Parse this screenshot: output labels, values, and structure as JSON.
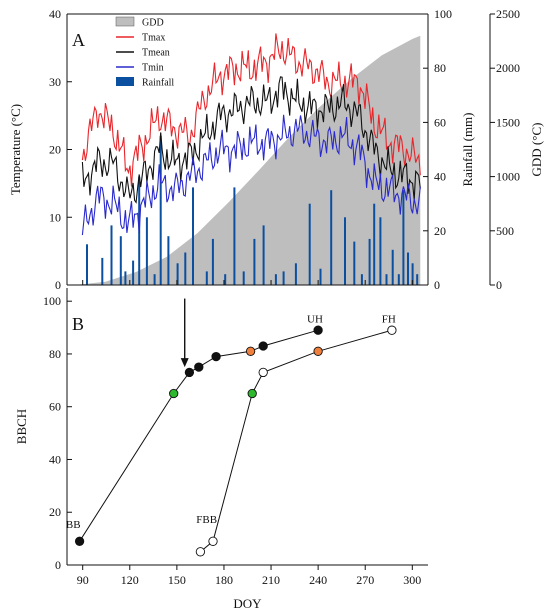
{
  "chart_data": [
    {
      "type": "line",
      "panel_label": "A",
      "ylabel_left": "Temperature (°C)",
      "ylabel_right_rain": "Rainfall (mm)",
      "ylabel_right_gdd": "GDD (°C)",
      "ylim_temp": [
        0,
        40
      ],
      "ylim_rain": [
        0,
        100
      ],
      "ylim_gdd": [
        0,
        2500
      ],
      "yticks_temp": [
        0,
        10,
        20,
        30,
        40
      ],
      "yticks_rain": [
        0,
        20,
        40,
        60,
        80,
        100
      ],
      "yticks_gdd": [
        0,
        500,
        1000,
        1500,
        2000,
        2500
      ],
      "xlim": [
        75,
        310
      ],
      "legend_position": "top-left",
      "legend": [
        {
          "name": "GDD",
          "kind": "area",
          "color": "#bebebe"
        },
        {
          "name": "Tmax",
          "kind": "line",
          "color": "#e8262b"
        },
        {
          "name": "Tmean",
          "kind": "line",
          "color": "#111111"
        },
        {
          "name": "Tmin",
          "kind": "line",
          "color": "#2a2acc"
        },
        {
          "name": "Rainfall",
          "kind": "bar",
          "color": "#0a4fa0"
        }
      ],
      "gdd_series": {
        "name": "GDD",
        "x": [
          80,
          100,
          120,
          140,
          160,
          180,
          200,
          220,
          240,
          260,
          280,
          300,
          305
        ],
        "y": [
          0,
          30,
          120,
          260,
          480,
          760,
          1060,
          1370,
          1650,
          1900,
          2120,
          2270,
          2300
        ]
      },
      "temperature_keypoints": {
        "tmax": {
          "x": [
            85,
            95,
            105,
            115,
            125,
            135,
            145,
            155,
            165,
            175,
            185,
            195,
            205,
            215,
            225,
            235,
            245,
            255,
            265,
            275,
            285,
            295,
            305
          ],
          "y": [
            19,
            26,
            23,
            17,
            21,
            25,
            23,
            22,
            28,
            31,
            32,
            32,
            33,
            35,
            33,
            32,
            30,
            30,
            30,
            24,
            21,
            20,
            18
          ]
        },
        "tmean": {
          "x": [
            85,
            95,
            105,
            115,
            125,
            135,
            145,
            155,
            165,
            175,
            185,
            195,
            205,
            215,
            225,
            235,
            245,
            255,
            265,
            275,
            285,
            295,
            305
          ],
          "y": [
            15,
            18,
            18,
            13,
            16,
            20,
            18,
            19,
            22,
            25,
            26,
            27,
            27,
            29,
            27,
            26,
            26,
            27,
            25,
            20,
            17,
            16,
            15
          ]
        },
        "tmin": {
          "x": [
            85,
            95,
            105,
            115,
            125,
            135,
            145,
            155,
            165,
            175,
            185,
            195,
            205,
            215,
            225,
            235,
            245,
            255,
            265,
            275,
            285,
            295,
            305
          ],
          "y": [
            8,
            13,
            12,
            9,
            12,
            15,
            14,
            16,
            18,
            20,
            20,
            21,
            21,
            22,
            23,
            22,
            21,
            22,
            20,
            15,
            14,
            13,
            12
          ]
        }
      },
      "rainfall_bars": {
        "x": [
          88,
          98,
          104,
          110,
          113,
          118,
          122,
          127,
          132,
          136,
          141,
          147,
          152,
          157,
          166,
          170,
          178,
          184,
          190,
          197,
          203,
          211,
          216,
          224,
          233,
          240,
          247,
          256,
          262,
          267,
          272,
          275,
          279,
          283,
          287,
          291,
          294,
          297,
          300,
          303
        ],
        "y": [
          15,
          10,
          22,
          18,
          5,
          9,
          40,
          25,
          4,
          55,
          18,
          8,
          12,
          36,
          5,
          17,
          4,
          36,
          5,
          17,
          22,
          4,
          5,
          8,
          30,
          6,
          35,
          25,
          16,
          4,
          17,
          30,
          25,
          4,
          13,
          4,
          35,
          12,
          8,
          4
        ]
      }
    },
    {
      "type": "scatter",
      "panel_label": "B",
      "xlabel": "DOY",
      "ylabel": "BBCH",
      "xlim": [
        80,
        310
      ],
      "ylim": [
        0,
        105
      ],
      "xticks": [
        90,
        120,
        150,
        180,
        210,
        240,
        270,
        300
      ],
      "yticks": [
        0,
        20,
        40,
        60,
        80,
        100
      ],
      "series": [
        {
          "x": [
            88,
            148,
            158,
            164,
            175,
            197,
            205,
            240
          ],
          "y": [
            9,
            65,
            73,
            75,
            79,
            81,
            83,
            89
          ],
          "fills": [
            "#111111",
            "#2db82d",
            "#111111",
            "#111111",
            "#111111",
            "#ef7f3a",
            "#111111",
            "#111111"
          ]
        },
        {
          "x": [
            165,
            173,
            198,
            205,
            240,
            287
          ],
          "y": [
            5,
            9,
            65,
            73,
            81,
            89
          ],
          "fills": [
            "#ffffff",
            "#ffffff",
            "#2db82d",
            "#ffffff",
            "#ef7f3a",
            "#ffffff"
          ]
        }
      ],
      "annotations": [
        {
          "text": "BB",
          "x": 84,
          "y": 14
        },
        {
          "text": "FBB",
          "x": 169,
          "y": 16
        },
        {
          "text": "UH",
          "x": 238,
          "y": 92
        },
        {
          "text": "FH",
          "x": 285,
          "y": 92
        }
      ],
      "arrow": {
        "x": 155,
        "y_from": 101,
        "y_to": 75
      }
    }
  ]
}
